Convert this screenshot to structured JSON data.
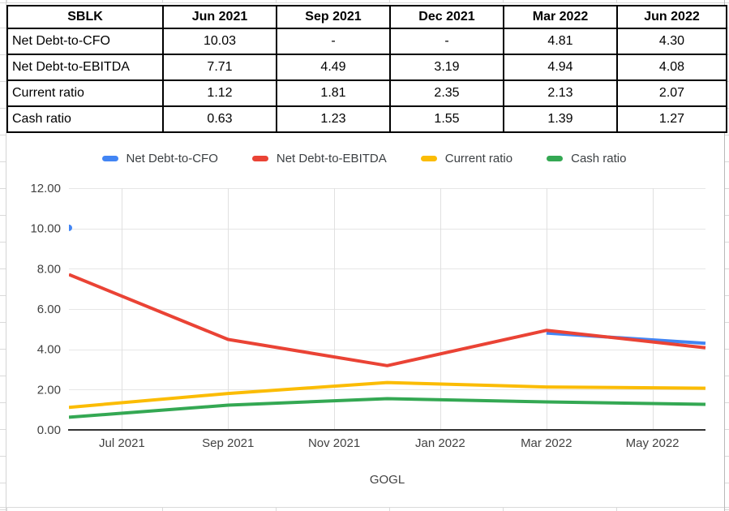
{
  "table": {
    "header": [
      "SBLK",
      "Jun 2021",
      "Sep 2021",
      "Dec 2021",
      "Mar 2022",
      "Jun 2022"
    ],
    "rows": [
      {
        "label": "Net Debt-to-CFO",
        "values": [
          "10.03",
          "-",
          "-",
          "4.81",
          "4.30"
        ]
      },
      {
        "label": "Net Debt-to-EBITDA",
        "values": [
          "7.71",
          "4.49",
          "3.19",
          "4.94",
          "4.08"
        ]
      },
      {
        "label": "Current ratio",
        "values": [
          "1.12",
          "1.81",
          "2.35",
          "2.13",
          "2.07"
        ]
      },
      {
        "label": "Cash ratio",
        "values": [
          "0.63",
          "1.23",
          "1.55",
          "1.39",
          "1.27"
        ]
      }
    ]
  },
  "chart_data": {
    "type": "line",
    "title": "",
    "xlabel": "GOGL",
    "ylabel": "",
    "ylim": [
      0,
      12
    ],
    "y_tick_step": 2,
    "y_tick_labels": [
      "0.00",
      "2.00",
      "4.00",
      "6.00",
      "8.00",
      "10.00",
      "12.00"
    ],
    "grid": true,
    "legend_position": "top",
    "categories": [
      "Jun 2021",
      "Sep 2021",
      "Dec 2021",
      "Mar 2022",
      "Jun 2022"
    ],
    "category_month_offsets": [
      0,
      3,
      6,
      9,
      12
    ],
    "x_tick_labels": [
      {
        "month_offset": 1,
        "label": "Jul 2021"
      },
      {
        "month_offset": 3,
        "label": "Sep 2021"
      },
      {
        "month_offset": 5,
        "label": "Nov 2021"
      },
      {
        "month_offset": 7,
        "label": "Jan 2022"
      },
      {
        "month_offset": 9,
        "label": "Mar 2022"
      },
      {
        "month_offset": 11,
        "label": "May 2022"
      }
    ],
    "series": [
      {
        "name": "Net Debt-to-CFO",
        "color": "#4285F4",
        "values": [
          10.03,
          null,
          null,
          4.81,
          4.3
        ]
      },
      {
        "name": "Net Debt-to-EBITDA",
        "color": "#EA4335",
        "values": [
          7.71,
          4.49,
          3.19,
          4.94,
          4.08
        ]
      },
      {
        "name": "Current ratio",
        "color": "#FBBC04",
        "values": [
          1.12,
          1.81,
          2.35,
          2.13,
          2.07
        ]
      },
      {
        "name": "Cash ratio",
        "color": "#34A853",
        "values": [
          0.63,
          1.23,
          1.55,
          1.39,
          1.27
        ]
      }
    ]
  }
}
